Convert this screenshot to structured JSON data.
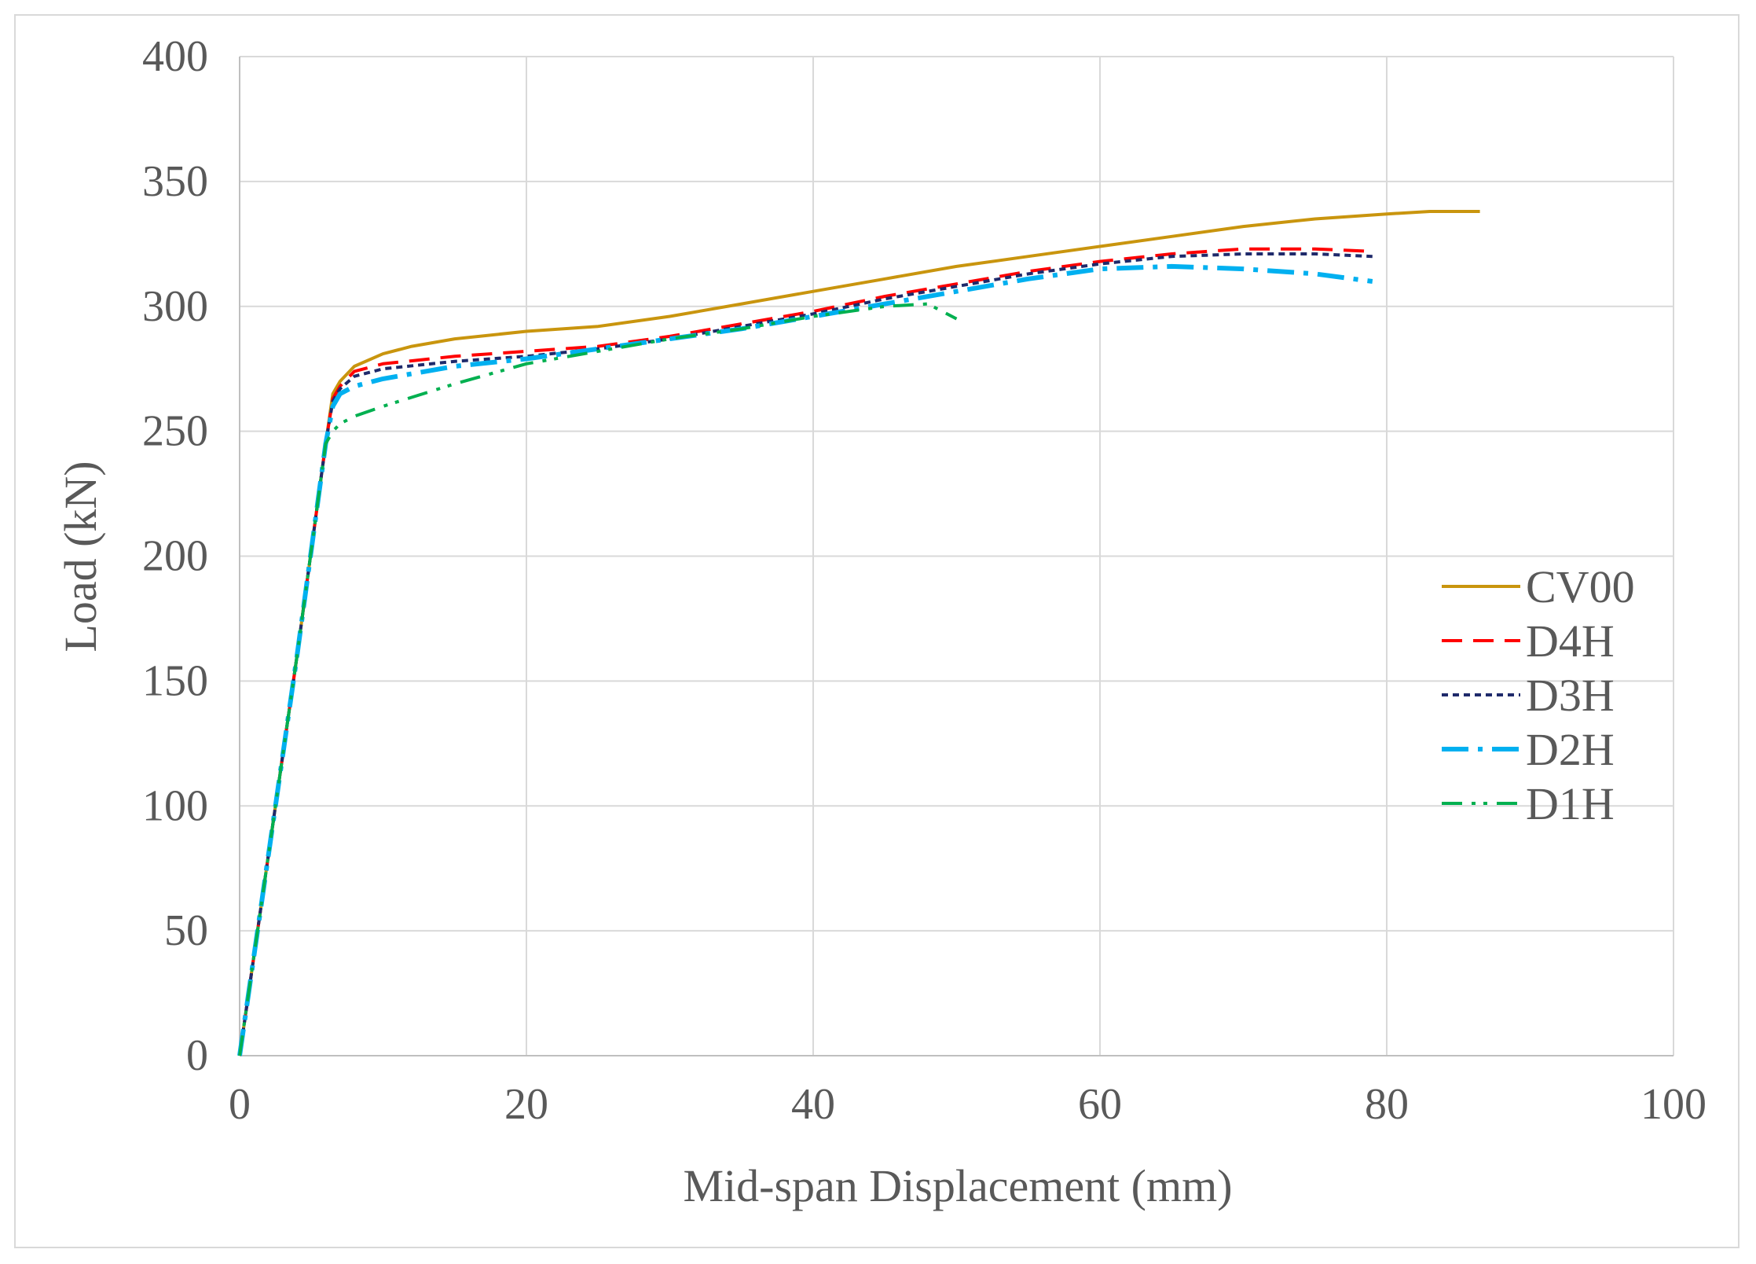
{
  "chart_data": {
    "type": "line",
    "title": "",
    "xlabel": "Mid-span Displacement (mm)",
    "ylabel": "Load (kN)",
    "xlim": [
      0,
      100
    ],
    "ylim": [
      0,
      400
    ],
    "xticks": [
      0,
      20,
      40,
      60,
      80,
      100
    ],
    "yticks": [
      0,
      50,
      100,
      150,
      200,
      250,
      300,
      350,
      400
    ],
    "grid": true,
    "legend_position": "right",
    "series": [
      {
        "name": "CV00",
        "color": "#C9950E",
        "style": "solid",
        "x": [
          0,
          2,
          4,
          6,
          6.5,
          7,
          8,
          10,
          12,
          15,
          20,
          25,
          30,
          35,
          40,
          45,
          50,
          55,
          60,
          65,
          70,
          75,
          80,
          83,
          86.5
        ],
        "y": [
          0,
          80,
          160,
          245,
          265,
          270,
          276,
          281,
          284,
          287,
          290,
          292,
          296,
          301,
          306,
          311,
          316,
          320,
          324,
          328,
          332,
          335,
          337,
          338,
          338
        ]
      },
      {
        "name": "D4H",
        "color": "#FF0000",
        "style": "dash",
        "x": [
          0,
          2,
          4,
          6,
          6.5,
          7,
          8,
          10,
          15,
          20,
          25,
          30,
          35,
          40,
          45,
          50,
          55,
          60,
          65,
          70,
          75,
          79
        ],
        "y": [
          0,
          80,
          160,
          245,
          263,
          268,
          274,
          277,
          280,
          282,
          284,
          288,
          293,
          298,
          304,
          309,
          314,
          318,
          321,
          323,
          323,
          322
        ]
      },
      {
        "name": "D3H",
        "color": "#1F2A6B",
        "style": "dot",
        "x": [
          0,
          2,
          4,
          6,
          6.5,
          7,
          8,
          10,
          15,
          20,
          25,
          30,
          35,
          40,
          45,
          50,
          55,
          60,
          65,
          70,
          75,
          79
        ],
        "y": [
          0,
          80,
          160,
          245,
          262,
          267,
          272,
          275,
          278,
          280,
          283,
          287,
          292,
          297,
          303,
          308,
          313,
          317,
          320,
          321,
          321,
          320
        ]
      },
      {
        "name": "D2H",
        "color": "#00B0F0",
        "style": "longdashdot",
        "x": [
          0,
          2,
          4,
          6,
          6.5,
          7,
          8,
          10,
          15,
          20,
          25,
          30,
          35,
          40,
          45,
          50,
          55,
          60,
          65,
          70,
          75,
          79
        ],
        "y": [
          0,
          80,
          160,
          245,
          260,
          265,
          268,
          271,
          276,
          279,
          283,
          287,
          291,
          296,
          301,
          306,
          311,
          315,
          316,
          315,
          313,
          310
        ]
      },
      {
        "name": "D1H",
        "color": "#00B050",
        "style": "dashdotdot",
        "x": [
          0,
          2,
          4,
          6,
          6.5,
          7,
          8,
          10,
          15,
          20,
          25,
          30,
          35,
          40,
          45,
          48,
          50
        ],
        "y": [
          0,
          80,
          160,
          245,
          250,
          253,
          256,
          260,
          269,
          277,
          282,
          287,
          291,
          296,
          300,
          301,
          295
        ]
      }
    ]
  }
}
